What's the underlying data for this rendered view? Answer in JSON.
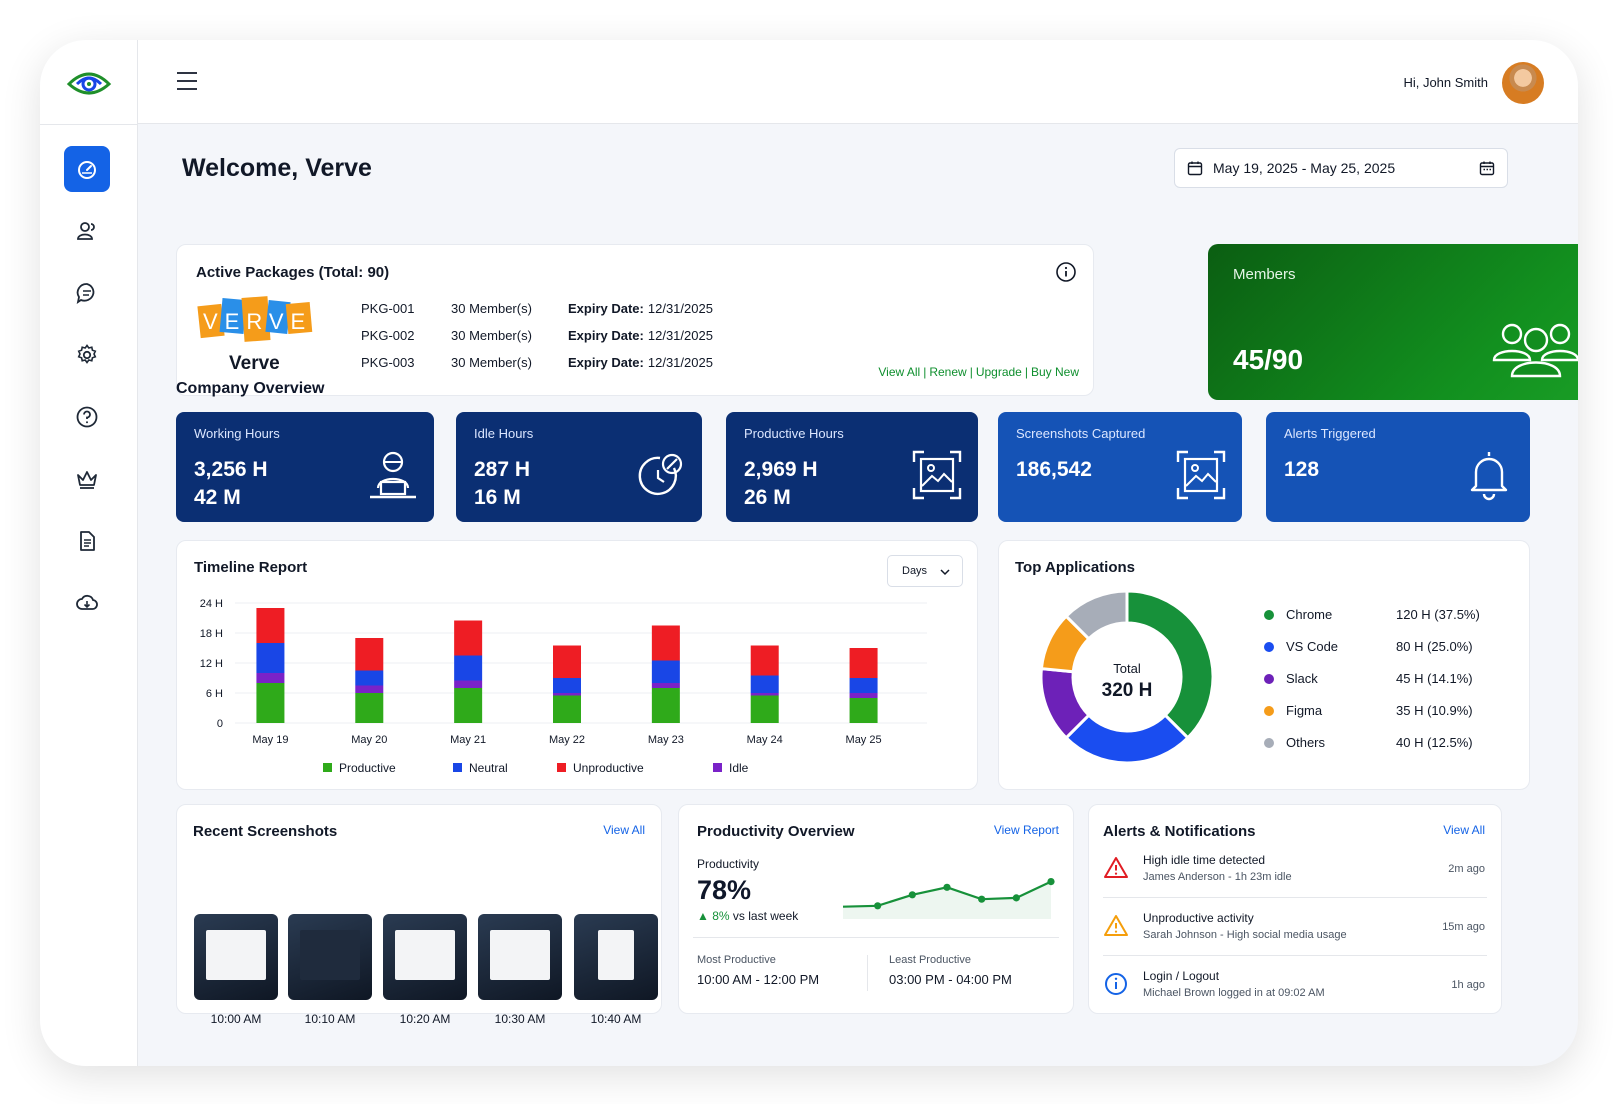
{
  "header": {
    "greeting": "Hi, John Smith"
  },
  "sidebar": {
    "items": [
      {
        "icon": "dashboard-icon",
        "active": true
      },
      {
        "icon": "users-icon"
      },
      {
        "icon": "chat-icon"
      },
      {
        "icon": "settings-icon"
      },
      {
        "icon": "help-icon"
      },
      {
        "icon": "crown-icon"
      },
      {
        "icon": "document-icon"
      },
      {
        "icon": "cloud-download-icon"
      }
    ]
  },
  "welcome": "Welcome, Verve",
  "date_range": "May 19, 2025 - May 25, 2025",
  "packages": {
    "title": "Active Packages (Total: 90)",
    "brand": "Verve",
    "logo_letters": "VERVE",
    "rows": [
      {
        "id": "PKG-001",
        "members": "30 Member(s)",
        "expiry_label": "Expiry Date:",
        "expiry": "12/31/2025"
      },
      {
        "id": "PKG-002",
        "members": "30 Member(s)",
        "expiry_label": "Expiry Date:",
        "expiry": "12/31/2025"
      },
      {
        "id": "PKG-003",
        "members": "30 Member(s)",
        "expiry_label": "Expiry Date:",
        "expiry": "12/31/2025"
      }
    ],
    "links": [
      "View All",
      "Renew",
      "Upgrade",
      "Buy New"
    ]
  },
  "members": {
    "label": "Members",
    "value": "45/90"
  },
  "overview": {
    "title": "Company Overview",
    "stats": [
      {
        "label": "Working Hours",
        "line1": "3,256 H",
        "line2": "42 M",
        "icon": "worker-laptop-icon"
      },
      {
        "label": "Idle Hours",
        "line1": "287 H",
        "line2": "16 M",
        "icon": "idle-clock-icon"
      },
      {
        "label": "Productive Hours",
        "line1": "2,969 H",
        "line2": "26 M",
        "icon": "screenshot-frame-icon"
      },
      {
        "label": "Screenshots Captured",
        "line1": "186,542",
        "line2": "",
        "icon": "image-frame-icon"
      },
      {
        "label": "Alerts Triggered",
        "line1": "128",
        "line2": "",
        "icon": "bell-icon"
      }
    ]
  },
  "timeline": {
    "title": "Timeline Report",
    "filter": "Days"
  },
  "chart_data": [
    {
      "type": "bar",
      "stacked": true,
      "categories": [
        "May 19",
        "May 20",
        "May 21",
        "May 22",
        "May 23",
        "May 24",
        "May 25"
      ],
      "yticks": [
        "0",
        "6 H",
        "12 H",
        "18 H",
        "24 H"
      ],
      "ylim": [
        0,
        24
      ],
      "grid": true,
      "legend": "bottom",
      "series": [
        {
          "name": "Productive",
          "color": "#2faa1a",
          "values": [
            8,
            6,
            7,
            5.5,
            7,
            5.5,
            5
          ]
        },
        {
          "name": "Idle",
          "color": "#7a22c8",
          "values": [
            2,
            1.5,
            1.5,
            0.5,
            1,
            0.5,
            1
          ]
        },
        {
          "name": "Neutral",
          "color": "#1946e6",
          "values": [
            6,
            3,
            5,
            3,
            4.5,
            3.5,
            3
          ]
        },
        {
          "name": "Unproductive",
          "color": "#ee1d24",
          "values": [
            7,
            6.5,
            7,
            6.5,
            7,
            6,
            6
          ]
        }
      ],
      "legend_order": [
        "Productive",
        "Neutral",
        "Unproductive",
        "Idle"
      ]
    },
    {
      "type": "pie",
      "donut": true,
      "title": "Top Applications",
      "center_label": "Total",
      "center_value": "320 H",
      "slices": [
        {
          "name": "Chrome",
          "hours": 120,
          "display": "120 H (37.5%)",
          "color": "#17913a"
        },
        {
          "name": "VS Code",
          "hours": 80,
          "display": "80 H (25.0%)",
          "color": "#1a4df0"
        },
        {
          "name": "Slack",
          "hours": 45,
          "display": "45 H (14.1%)",
          "color": "#6d21b8"
        },
        {
          "name": "Figma",
          "hours": 35,
          "display": "35 H (10.9%)",
          "color": "#f59c1a"
        },
        {
          "name": "Others",
          "hours": 40,
          "display": "40 H (12.5%)",
          "color": "#a7adb8"
        }
      ]
    },
    {
      "type": "line",
      "values": [
        28,
        30,
        55,
        72,
        45,
        48,
        85
      ],
      "ylim": [
        0,
        100
      ],
      "color": "#17913a"
    }
  ],
  "screenshots": {
    "title": "Recent Screenshots",
    "view_all": "View All",
    "items": [
      "10:00 AM",
      "10:10 AM",
      "10:20 AM",
      "10:30 AM",
      "10:40 AM"
    ]
  },
  "productivity": {
    "title": "Productivity Overview",
    "view_report": "View Report",
    "label": "Productivity",
    "value": "78%",
    "delta": "8%",
    "delta_text": "vs last week",
    "most_label": "Most Productive",
    "most_value": "10:00 AM - 12:00 PM",
    "least_label": "Least Productive",
    "least_value": "03:00 PM - 04:00 PM"
  },
  "alerts": {
    "title": "Alerts & Notifications",
    "view_all": "View All",
    "items": [
      {
        "title": "High idle time detected",
        "sub": "James Anderson - 1h 23m idle",
        "time": "2m ago",
        "icon": "warning-red-icon",
        "color": "#e11d24"
      },
      {
        "title": "Unproductive activity",
        "sub": "Sarah Johnson - High social media usage",
        "time": "15m ago",
        "icon": "warning-orange-icon",
        "color": "#f59e0b"
      },
      {
        "title": "Login / Logout",
        "sub": "Michael Brown logged in at 09:02 AM",
        "time": "1h ago",
        "icon": "info-icon",
        "color": "#1463e6"
      }
    ]
  }
}
